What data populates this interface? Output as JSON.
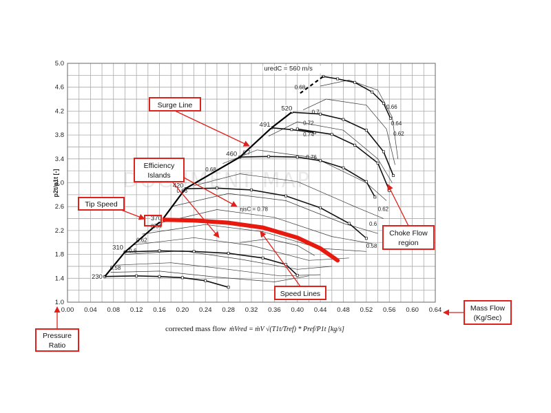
{
  "chart_data": {
    "type": "line",
    "title": "",
    "xlabel": "corrected mass flow",
    "xlabel_formula": "ṁVred = ṁV √(T1t/Tref) * Pref/P1t  [kg/s]",
    "ylabel": "p2t/p1t [-]",
    "xlim": [
      0.0,
      0.64
    ],
    "ylim": [
      1.0,
      5.0
    ],
    "x_ticks": [
      "0.00",
      "0.04",
      "0.08",
      "0.12",
      "0.16",
      "0.20",
      "0.24",
      "0.28",
      "0.32",
      "0.36",
      "0.40",
      "0.44",
      "0.48",
      "0.52",
      "0.56",
      "0.60",
      "0.64"
    ],
    "y_ticks": [
      "1.0",
      "1.4",
      "1.8",
      "2.2",
      "2.6",
      "3.0",
      "3.4",
      "3.8",
      "4.2",
      "4.6",
      "5.0"
    ],
    "grid": true,
    "watermark": "DOCUMENT MAP",
    "speed_lines": [
      {
        "label": "230",
        "points": [
          [
            0.065,
            1.43
          ],
          [
            0.12,
            1.44
          ],
          [
            0.16,
            1.43
          ],
          [
            0.2,
            1.41
          ],
          [
            0.24,
            1.36
          ],
          [
            0.28,
            1.25
          ]
        ]
      },
      {
        "label": "310",
        "points": [
          [
            0.1,
            1.84
          ],
          [
            0.16,
            1.86
          ],
          [
            0.22,
            1.85
          ],
          [
            0.28,
            1.82
          ],
          [
            0.34,
            1.74
          ],
          [
            0.38,
            1.63
          ],
          [
            0.4,
            1.45
          ]
        ]
      },
      {
        "label": "370",
        "points": [
          [
            0.165,
            2.38
          ],
          [
            0.22,
            2.37
          ],
          [
            0.28,
            2.33
          ],
          [
            0.34,
            2.25
          ],
          [
            0.4,
            2.08
          ],
          [
            0.44,
            1.9
          ],
          [
            0.47,
            1.7
          ]
        ]
      },
      {
        "label": "420",
        "points": [
          [
            0.205,
            2.9
          ],
          [
            0.26,
            2.91
          ],
          [
            0.32,
            2.88
          ],
          [
            0.38,
            2.78
          ],
          [
            0.44,
            2.58
          ],
          [
            0.49,
            2.32
          ],
          [
            0.52,
            2.07
          ]
        ]
      },
      {
        "label": "460",
        "points": [
          [
            0.3,
            3.43
          ],
          [
            0.35,
            3.44
          ],
          [
            0.4,
            3.43
          ],
          [
            0.44,
            3.37
          ],
          [
            0.48,
            3.25
          ],
          [
            0.52,
            3.02
          ],
          [
            0.535,
            2.76
          ]
        ]
      },
      {
        "label": "491",
        "points": [
          [
            0.355,
            3.92
          ],
          [
            0.39,
            3.89
          ],
          [
            0.43,
            3.84
          ]
        ]
      },
      {
        "label": "491b",
        "points": [
          [
            0.4,
            3.9
          ],
          [
            0.46,
            3.81
          ],
          [
            0.5,
            3.63
          ],
          [
            0.54,
            3.33
          ],
          [
            0.56,
            2.87
          ]
        ]
      },
      {
        "label": "520",
        "points": [
          [
            0.39,
            4.18
          ],
          [
            0.44,
            4.15
          ],
          [
            0.48,
            4.06
          ],
          [
            0.52,
            3.88
          ],
          [
            0.55,
            3.52
          ],
          [
            0.567,
            3.12
          ]
        ]
      },
      {
        "label": "560",
        "points": [
          [
            0.445,
            4.78
          ],
          [
            0.47,
            4.74
          ],
          [
            0.5,
            4.68
          ],
          [
            0.53,
            4.52
          ],
          [
            0.55,
            4.33
          ],
          [
            0.562,
            4.08
          ]
        ]
      }
    ],
    "surge_line": [
      [
        0.065,
        1.43
      ],
      [
        0.1,
        1.84
      ],
      [
        0.165,
        2.38
      ],
      [
        0.205,
        2.9
      ],
      [
        0.3,
        3.43
      ],
      [
        0.355,
        3.92
      ],
      [
        0.39,
        4.18
      ]
    ],
    "surge_line_top": [
      [
        0.405,
        4.5
      ],
      [
        0.445,
        4.78
      ]
    ],
    "tip_speed_line": [
      [
        0.165,
        2.38
      ],
      [
        0.22,
        2.37
      ],
      [
        0.28,
        2.33
      ],
      [
        0.34,
        2.25
      ],
      [
        0.4,
        2.08
      ],
      [
        0.44,
        1.9
      ],
      [
        0.47,
        1.7
      ]
    ],
    "efficiency_label": "ηisC = 0.78",
    "speed_label": "uredC = 560 m/s",
    "speed_labels": [
      "230",
      "310",
      "370",
      "420",
      "460",
      "491",
      "520"
    ],
    "efficiency_labels_left": [
      "0.58",
      "0.6",
      "0.62",
      "0.64",
      "0.66",
      "0.68",
      "0.7"
    ],
    "efficiency_labels_top": [
      "0.66",
      "0.68",
      "0.7",
      "0.72",
      "0.74",
      "0.76"
    ],
    "efficiency_labels_right": [
      "0.66",
      "0.64",
      "0.62",
      "0.62",
      "0.6",
      "0.58"
    ],
    "annotations": {
      "surge_line": "Surge Line",
      "efficiency_islands_1": "Efficiency",
      "efficiency_islands_2": "Islands",
      "tip_speed": "Tip Speed",
      "speed_lines": "Speed Lines",
      "choke_flow_1": "Choke Flow",
      "choke_flow_2": "region",
      "mass_flow_1": "Mass  Flow",
      "mass_flow_2": "(Kg/Sec)",
      "pressure_ratio_1": "Pressure",
      "pressure_ratio_2": "Ratio"
    }
  }
}
